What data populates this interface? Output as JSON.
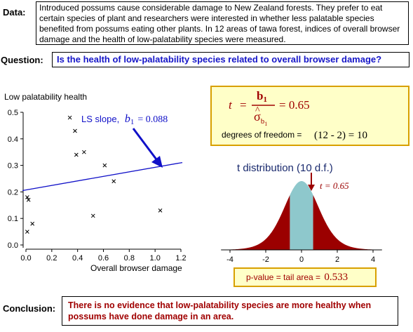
{
  "data_section": {
    "label": "Data:",
    "text": "Introduced possums cause considerable damage to New Zealand forests. They prefer to eat certain species of plant and researchers were interested in whether less palatable species benefited from possums eating other plants. In 12 areas of tawa forest, indices of overall browser damage and the health of low-palatability species were measured."
  },
  "question_section": {
    "label": "Question:",
    "text": "Is the health of low-palatability species related to overall browser damage?"
  },
  "conclusion_section": {
    "label": "Conclusion:",
    "text": "There is no evidence that low-palatability species are more healthy when possums have done damage in an area."
  },
  "scatter": {
    "ylabel": "Low palatability health",
    "xlabel": "Overall browser damage",
    "slope_label": "LS slope,",
    "slope_symbol": "b",
    "slope_sub": "1",
    "slope_value": "= 0.088"
  },
  "t_box": {
    "t_symbol": "t",
    "equals": "=",
    "numerator": "b",
    "numerator_sub": "1",
    "denominator": "σ",
    "denominator_hat": "^",
    "denominator_sub": "b",
    "denominator_sub_sub": "1",
    "value": "= 0.65",
    "df_text": "degrees of freedom =",
    "df_expr": "(12 - 2) = 10"
  },
  "t_distribution": {
    "title": "t distribution (10 d.f.)",
    "t_marker_label": "t = 0.65",
    "pvalue_label": "p-value  =  tail area  =",
    "pvalue_value": "0.533"
  },
  "chart_data": [
    {
      "type": "scatter",
      "xlabel": "Overall browser damage",
      "ylabel": "Low palatability health",
      "xlim": [
        0,
        1.2
      ],
      "ylim": [
        0,
        0.5
      ],
      "x_ticks": [
        "0.0",
        "0.2",
        "0.4",
        "0.6",
        "0.8",
        "1.0",
        "1.2"
      ],
      "y_ticks": [
        "0.0",
        "0.1",
        "0.2",
        "0.3",
        "0.4",
        "0.5"
      ],
      "points": [
        {
          "x": 0.01,
          "y": 0.05
        },
        {
          "x": 0.01,
          "y": 0.18
        },
        {
          "x": 0.02,
          "y": 0.17
        },
        {
          "x": 0.05,
          "y": 0.08
        },
        {
          "x": 0.34,
          "y": 0.48
        },
        {
          "x": 0.38,
          "y": 0.43
        },
        {
          "x": 0.39,
          "y": 0.34
        },
        {
          "x": 0.45,
          "y": 0.35
        },
        {
          "x": 0.52,
          "y": 0.11
        },
        {
          "x": 0.61,
          "y": 0.3
        },
        {
          "x": 0.68,
          "y": 0.24
        },
        {
          "x": 1.04,
          "y": 0.13
        }
      ],
      "fit_line": {
        "intercept": 0.205,
        "slope": 0.088
      }
    },
    {
      "type": "area",
      "title": "t distribution (10 d.f.)",
      "x_ticks": [
        "-4",
        "-2",
        "0",
        "2",
        "4"
      ],
      "xlim": [
        -4.5,
        4.5
      ],
      "t_value": 0.65,
      "df": 10,
      "colors": {
        "tail": "#9b0000",
        "center": "#8ec8cc"
      }
    }
  ],
  "colors": {
    "question_text": "#1515c8",
    "conclusion_text": "#a00000",
    "fit_line": "#1010c8",
    "tail": "#9b0000",
    "center": "#8ec8cc",
    "t_box_bg": "#ffffc8",
    "pvalue_box_bg": "#ffffc8",
    "t_box_border": "#d8a000"
  }
}
